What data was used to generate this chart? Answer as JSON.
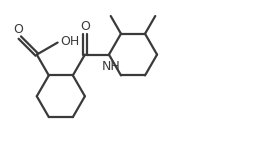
{
  "bg_color": "#ffffff",
  "line_color": "#3a3a3a",
  "line_width": 1.6,
  "font_size": 9,
  "cooh_label": "O",
  "oh_label": "OH",
  "amide_o_label": "O",
  "nh_label": "NH",
  "xlim": [
    -0.5,
    10.5
  ],
  "ylim": [
    -2.0,
    3.2
  ]
}
